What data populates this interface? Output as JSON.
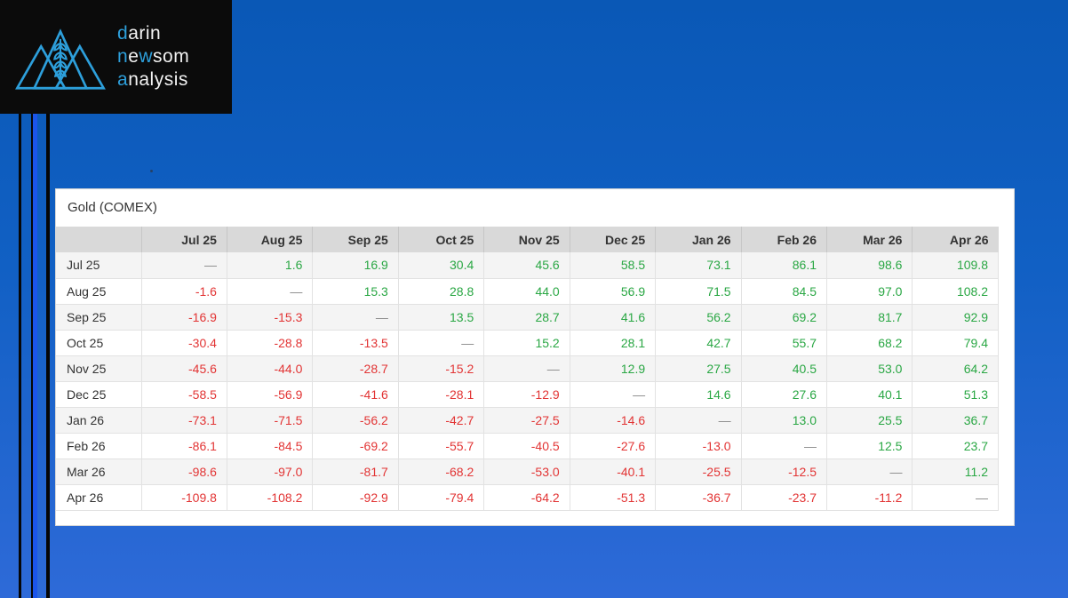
{
  "page": {
    "background_top": "#0a58b6",
    "background_bottom": "#2e6ad8",
    "stripe_blue": "#1b55ea"
  },
  "logo": {
    "accent_color": "#2d9fdb",
    "word1": {
      "accent": "d",
      "rest": "arin"
    },
    "word2": {
      "accent1": "n",
      "mid": "e",
      "accent2": "w",
      "rest": "som"
    },
    "word3": {
      "accent": "a",
      "rest": "nalysis"
    },
    "icon": "mountains-wheat-icon"
  },
  "table": {
    "title": "Gold (COMEX)",
    "columns": [
      "Jul 25",
      "Aug 25",
      "Sep 25",
      "Oct 25",
      "Nov 25",
      "Dec 25",
      "Jan 26",
      "Feb 26",
      "Mar 26",
      "Apr 26"
    ],
    "rows": [
      {
        "label": "Jul 25",
        "values": [
          "—",
          "1.6",
          "16.9",
          "30.4",
          "45.6",
          "58.5",
          "73.1",
          "86.1",
          "98.6",
          "109.8"
        ]
      },
      {
        "label": "Aug 25",
        "values": [
          "-1.6",
          "—",
          "15.3",
          "28.8",
          "44.0",
          "56.9",
          "71.5",
          "84.5",
          "97.0",
          "108.2"
        ]
      },
      {
        "label": "Sep 25",
        "values": [
          "-16.9",
          "-15.3",
          "—",
          "13.5",
          "28.7",
          "41.6",
          "56.2",
          "69.2",
          "81.7",
          "92.9"
        ]
      },
      {
        "label": "Oct 25",
        "values": [
          "-30.4",
          "-28.8",
          "-13.5",
          "—",
          "15.2",
          "28.1",
          "42.7",
          "55.7",
          "68.2",
          "79.4"
        ]
      },
      {
        "label": "Nov 25",
        "values": [
          "-45.6",
          "-44.0",
          "-28.7",
          "-15.2",
          "—",
          "12.9",
          "27.5",
          "40.5",
          "53.0",
          "64.2"
        ]
      },
      {
        "label": "Dec 25",
        "values": [
          "-58.5",
          "-56.9",
          "-41.6",
          "-28.1",
          "-12.9",
          "—",
          "14.6",
          "27.6",
          "40.1",
          "51.3"
        ]
      },
      {
        "label": "Jan 26",
        "values": [
          "-73.1",
          "-71.5",
          "-56.2",
          "-42.7",
          "-27.5",
          "-14.6",
          "—",
          "13.0",
          "25.5",
          "36.7"
        ]
      },
      {
        "label": "Feb 26",
        "values": [
          "-86.1",
          "-84.5",
          "-69.2",
          "-55.7",
          "-40.5",
          "-27.6",
          "-13.0",
          "—",
          "12.5",
          "23.7"
        ]
      },
      {
        "label": "Mar 26",
        "values": [
          "-98.6",
          "-97.0",
          "-81.7",
          "-68.2",
          "-53.0",
          "-40.1",
          "-25.5",
          "-12.5",
          "—",
          "11.2"
        ]
      },
      {
        "label": "Apr 26",
        "values": [
          "-109.8",
          "-108.2",
          "-92.9",
          "-79.4",
          "-64.2",
          "-51.3",
          "-36.7",
          "-23.7",
          "-11.2",
          "—"
        ]
      }
    ],
    "colors": {
      "positive": "#2aa744",
      "negative": "#e23434",
      "dash": "#8a8a8a"
    }
  }
}
